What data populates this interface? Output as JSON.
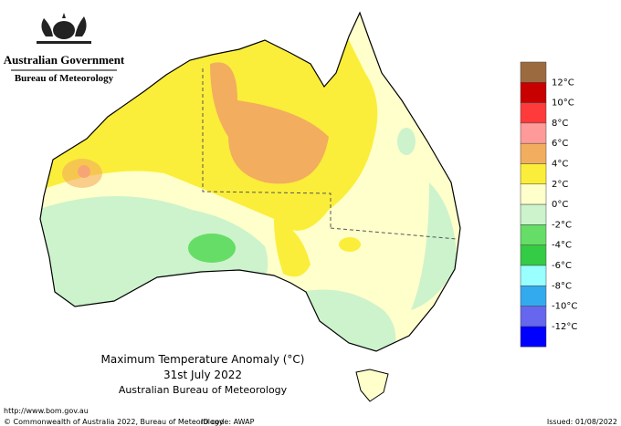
{
  "header": {
    "government": "Australian Government",
    "bureau": "Bureau of Meteorology"
  },
  "map": {
    "title": "Maximum Temperature Anomaly (°C)",
    "date": "31st July 2022",
    "source": "Australian Bureau of Meteorology"
  },
  "legend": {
    "colors": [
      "#9b6b3f",
      "#c80000",
      "#ff3a3a",
      "#ff9a9a",
      "#f3ad5e",
      "#fbee3a",
      "#ffffcc",
      "#ccf3cc",
      "#66dd66",
      "#33cc44",
      "#99ffff",
      "#33aaee",
      "#6666ee",
      "#0000ff"
    ],
    "labels": [
      "12°C",
      "10°C",
      "8°C",
      "6°C",
      "4°C",
      "2°C",
      "0°C",
      "-2°C",
      "-4°C",
      "-6°C",
      "-8°C",
      "-10°C",
      "-12°C"
    ]
  },
  "footer": {
    "url": "http://www.bom.gov.au",
    "copyright": "© Commonwealth of Australia 2022, Bureau of Meteorology",
    "id_code": "ID code: AWAP",
    "issued": "Issued: 01/08/2022"
  }
}
